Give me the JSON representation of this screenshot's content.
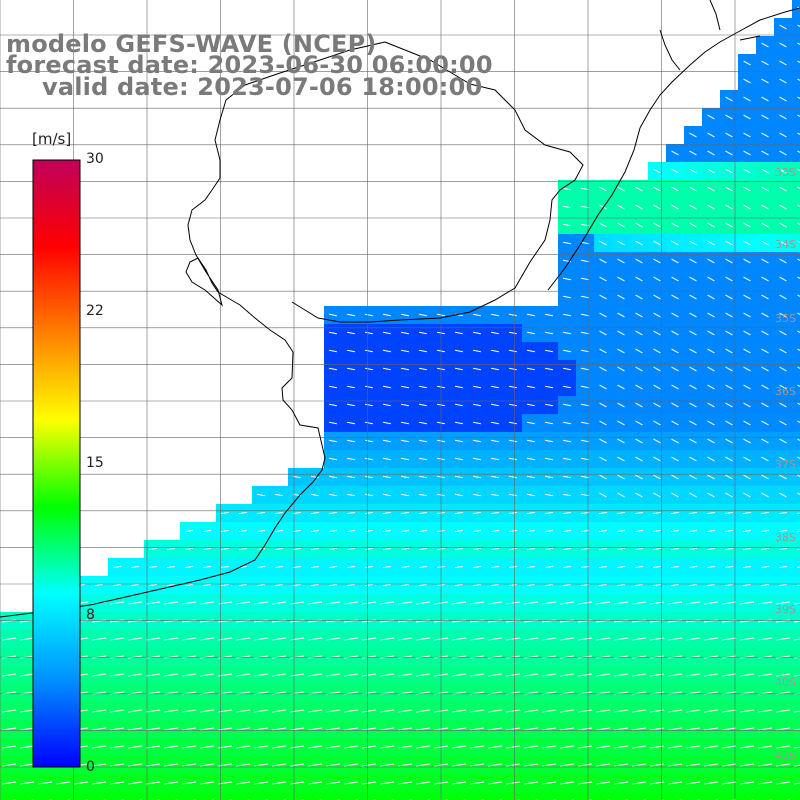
{
  "title": {
    "line1": "modelo GEFS-WAVE (NCEP)",
    "line2": "forecast date: 2023-06-30 06:00:00",
    "line3": "valid date: 2023-07-06 18:00:00"
  },
  "colorbar": {
    "unit": "[m/s]",
    "ticks": [
      "30",
      "22",
      "15",
      "8",
      "0"
    ],
    "colors": [
      "#0000ff",
      "#0090ff",
      "#00ffff",
      "#00ff00",
      "#ffff00",
      "#ff8000",
      "#ff0000",
      "#c0005a"
    ]
  },
  "lat_labels": [
    "33S",
    "34S",
    "35S",
    "36S",
    "37S",
    "38S",
    "39S",
    "40S",
    "41S"
  ],
  "colors": {
    "land": "#ffffff",
    "grid": "#666666",
    "coast": "#000000",
    "arrow": "#ffffff",
    "text": "#7a7a7a"
  }
}
